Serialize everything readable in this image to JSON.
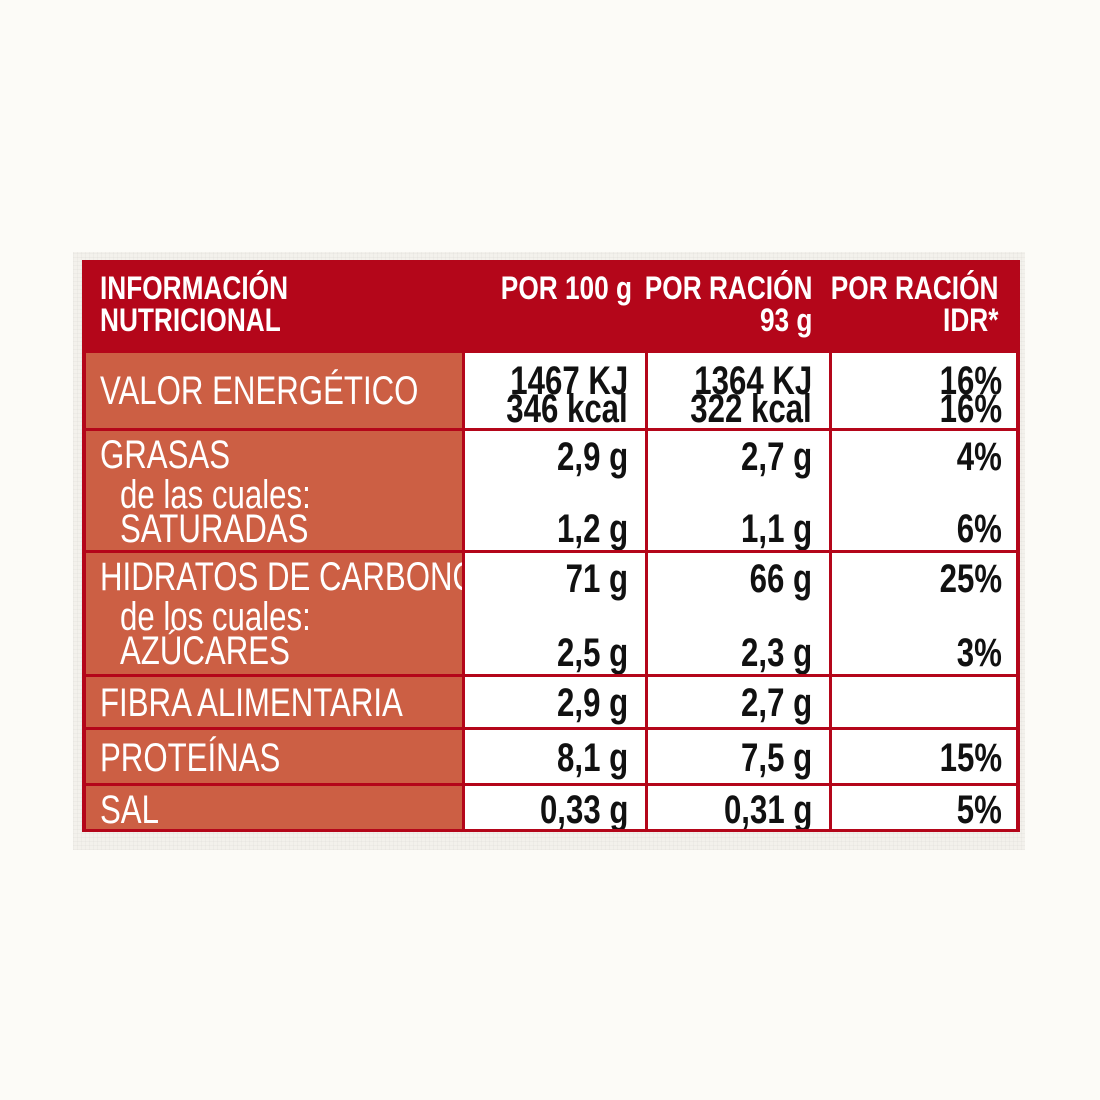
{
  "header": {
    "title_line1": "INFORMACIÓN",
    "title_line2": "NUTRICIONAL",
    "col1": "POR 100 g",
    "col2_line1": "POR RACIÓN",
    "col2_line2": "93 g",
    "col3_line1": "POR RACIÓN",
    "col3_line2": "IDR*"
  },
  "rows": {
    "energy": {
      "name": "VALOR ENERGÉTICO",
      "per100_kj": "1467 KJ",
      "per100_kcal": "346 kcal",
      "serving_kj": "1364 KJ",
      "serving_kcal": "322 kcal",
      "idr_kj": "16%",
      "idr_kcal": "16%"
    },
    "fat": {
      "name": "GRASAS",
      "sub_intro": "de las cuales:",
      "sub_name": "SATURADAS",
      "per100": "2,9 g",
      "serving": "2,7 g",
      "idr": "4%",
      "sat_per100": "1,2 g",
      "sat_serving": "1,1 g",
      "sat_idr": "6%"
    },
    "carbs": {
      "name": "HIDRATOS DE CARBONO",
      "sub_intro": "de los cuales:",
      "sub_name": "AZÚCARES",
      "per100": "71 g",
      "serving": "66 g",
      "idr": "25%",
      "sug_per100": "2,5 g",
      "sug_serving": "2,3 g",
      "sug_idr": "3%"
    },
    "fiber": {
      "name": "FIBRA ALIMENTARIA",
      "per100": "2,9 g",
      "serving": "2,7 g",
      "idr": ""
    },
    "protein": {
      "name": "PROTEÍNAS",
      "per100": "8,1 g",
      "serving": "7,5 g",
      "idr": "15%"
    },
    "salt": {
      "name": "SAL",
      "per100": "0,33 g",
      "serving": "0,31 g",
      "idr": "5%"
    }
  },
  "colors": {
    "header_bg": "#b4061a",
    "name_bg": "#cc5f44",
    "grid": "#b4061a"
  }
}
